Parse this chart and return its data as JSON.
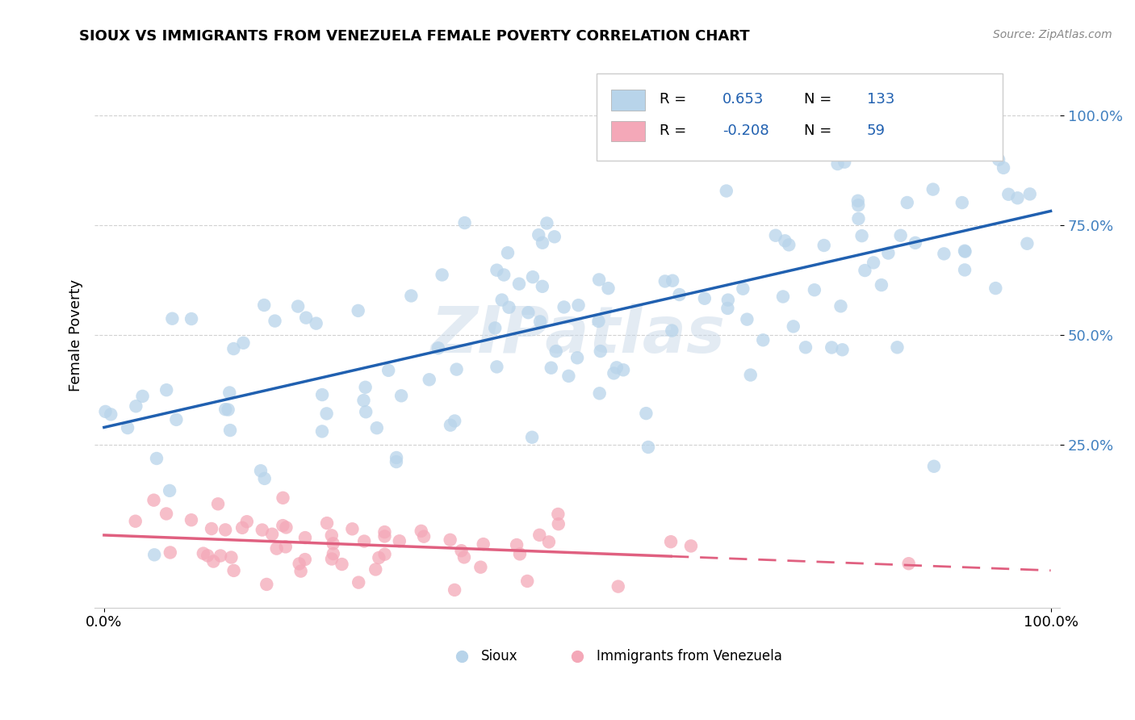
{
  "title": "SIOUX VS IMMIGRANTS FROM VENEZUELA FEMALE POVERTY CORRELATION CHART",
  "source": "Source: ZipAtlas.com",
  "ylabel": "Female Poverty",
  "r_sioux": 0.653,
  "n_sioux": 133,
  "r_venezuela": -0.208,
  "n_venezuela": 59,
  "color_sioux": "#b8d4ea",
  "color_venezuela": "#f4a8b8",
  "line_color_sioux": "#2060b0",
  "line_color_venezuela": "#e06080",
  "watermark": "ZIPatlas",
  "background_color": "#ffffff",
  "legend_box_color": "#f0f4f8",
  "ytick_color": "#4080c0"
}
